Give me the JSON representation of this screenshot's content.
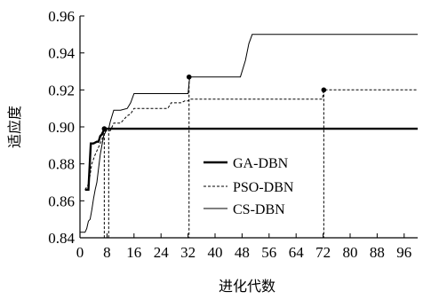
{
  "chart_data": {
    "type": "line",
    "xlabel": "进化代数",
    "ylabel": "适应度",
    "xlim": [
      0,
      100
    ],
    "ylim": [
      0.84,
      0.96
    ],
    "x_ticks": [
      0,
      8,
      16,
      24,
      32,
      40,
      48,
      56,
      64,
      72,
      80,
      88,
      96
    ],
    "y_ticks": [
      0.84,
      0.86,
      0.88,
      0.9,
      0.92,
      0.94,
      0.96
    ],
    "y_tick_labels": [
      "0.84",
      "0.86",
      "0.88",
      "0.90",
      "0.92",
      "0.94",
      "0.96"
    ],
    "grid": false,
    "legend_position": "center",
    "series": [
      {
        "name": "GA-DBN",
        "style": "solid-thick",
        "x": [
          1.5,
          2.5,
          2.9,
          3.2,
          4.0,
          5.0,
          5.5,
          6.0,
          6.5,
          7.0,
          7.2,
          7.6,
          8.0,
          20,
          40,
          60,
          80,
          100
        ],
        "y": [
          0.866,
          0.866,
          0.88,
          0.891,
          0.891,
          0.892,
          0.892,
          0.895,
          0.896,
          0.898,
          0.899,
          0.899,
          0.899,
          0.899,
          0.899,
          0.899,
          0.899,
          0.899
        ],
        "marker": {
          "x": 7.2,
          "y": 0.899
        }
      },
      {
        "name": "PSO-DBN",
        "style": "dashed",
        "x": [
          1.5,
          2.5,
          3.0,
          3.5,
          4.5,
          5.5,
          6.5,
          7.0,
          8.0,
          9.0,
          10.0,
          12.0,
          14.0,
          15.0,
          16.0,
          19.0,
          20.0,
          21.0,
          26.0,
          27.0,
          30.0,
          31.0,
          32.0,
          32.5,
          40.0,
          48.0,
          56.0,
          64.0,
          71.8,
          72.2,
          100.0
        ],
        "y": [
          0.866,
          0.869,
          0.874,
          0.88,
          0.885,
          0.889,
          0.893,
          0.897,
          0.898,
          0.898,
          0.902,
          0.902,
          0.906,
          0.907,
          0.91,
          0.91,
          0.91,
          0.91,
          0.91,
          0.913,
          0.913,
          0.914,
          0.914,
          0.915,
          0.915,
          0.915,
          0.915,
          0.915,
          0.915,
          0.92,
          0.92
        ],
        "marker": {
          "x": 72.2,
          "y": 0.92
        }
      },
      {
        "name": "CS-DBN",
        "style": "solid-thin",
        "x": [
          0.0,
          1.5,
          2.0,
          2.5,
          3.0,
          3.5,
          4.0,
          4.5,
          5.0,
          6.0,
          7.0,
          8.0,
          8.5,
          9.0,
          10.0,
          12.0,
          14.0,
          15.0,
          16.0,
          24.0,
          30.0,
          32.0,
          32.5,
          40.0,
          47.5,
          49.0,
          50.0,
          51.0,
          56.0,
          64.0,
          72.0,
          80.0,
          88.0,
          96.0,
          100.0
        ],
        "y": [
          0.843,
          0.843,
          0.845,
          0.849,
          0.85,
          0.855,
          0.861,
          0.866,
          0.87,
          0.885,
          0.895,
          0.899,
          0.899,
          0.903,
          0.909,
          0.909,
          0.91,
          0.913,
          0.918,
          0.918,
          0.918,
          0.918,
          0.927,
          0.927,
          0.927,
          0.936,
          0.945,
          0.95,
          0.95,
          0.95,
          0.95,
          0.95,
          0.95,
          0.95,
          0.95
        ],
        "marker": {
          "x": 32.3,
          "y": 0.927
        }
      }
    ],
    "drop_lines": [
      {
        "x": 7.2,
        "y": 0.899
      },
      {
        "x": 8.5,
        "y": 0.899
      },
      {
        "x": 32.3,
        "y": 0.927
      },
      {
        "x": 72.2,
        "y": 0.92
      }
    ]
  }
}
